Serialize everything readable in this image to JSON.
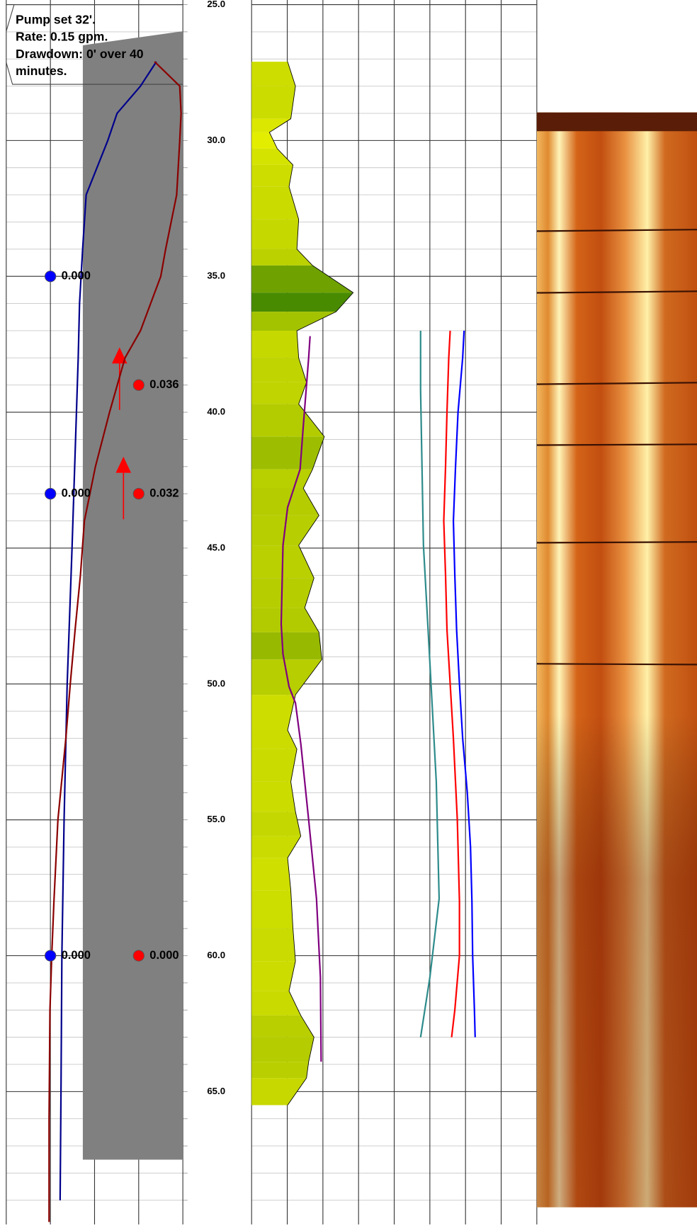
{
  "chart_data": {
    "type": "well_log",
    "ylim": [
      24.83,
      69.89
    ],
    "yticks": [
      {
        "value": 25,
        "label": "25.0"
      },
      {
        "value": 30,
        "label": "30.0"
      },
      {
        "value": 35,
        "label": "35.0"
      },
      {
        "value": 40,
        "label": "40.0"
      },
      {
        "value": 45,
        "label": "45.0"
      },
      {
        "value": 50,
        "label": "50.0"
      },
      {
        "value": 55,
        "label": "55.0"
      },
      {
        "value": 60,
        "label": "60.0"
      },
      {
        "value": 65,
        "label": "65.0"
      }
    ],
    "ygrid": [
      25,
      26,
      27,
      28,
      29,
      30,
      31,
      32,
      33,
      34,
      35,
      36,
      37,
      38,
      39,
      40,
      41,
      42,
      43,
      44,
      45,
      46,
      47,
      48,
      49,
      50,
      51,
      52,
      53,
      54,
      55,
      56,
      57,
      58,
      59,
      60,
      61,
      62,
      63,
      64,
      65,
      66,
      67,
      68,
      69
    ],
    "annotation": [
      "Pump set 32'.",
      "Rate: 0.15 gpm.",
      "Drawdown: 0' over 40",
      "minutes."
    ],
    "tracks": [
      {
        "xlim": [
          0,
          4
        ],
        "xticks": [
          0,
          1,
          2,
          3,
          4
        ],
        "curves": [
          {
            "color": "#00008b",
            "depths": [
              27.1,
              28,
              29,
              30,
              32,
              34,
              36,
              38,
              40,
              45,
              50,
              55,
              60,
              65,
              69
            ],
            "values": [
              3.4,
              3.04,
              2.51,
              2.3,
              1.81,
              1.73,
              1.66,
              1.63,
              1.59,
              1.49,
              1.38,
              1.31,
              1.26,
              1.24,
              1.22
            ]
          },
          {
            "color": "#8b0000",
            "depths": [
              27.1,
              28,
              29,
              30,
              32,
              34,
              35,
              37,
              38,
              40,
              42,
              44,
              46,
              48,
              50,
              52,
              55,
              58,
              60,
              62,
              66,
              69.8
            ],
            "values": [
              3.36,
              3.93,
              3.96,
              3.93,
              3.86,
              3.61,
              3.5,
              3.04,
              2.69,
              2.34,
              2.02,
              1.77,
              1.68,
              1.56,
              1.45,
              1.35,
              1.17,
              1.08,
              1.03,
              0.99,
              0.97,
              0.97
            ]
          }
        ],
        "points": [
          {
            "color": "#0000ff",
            "x": 1,
            "depths": [
              35,
              43,
              60
            ],
            "values": [
              0,
              0,
              0
            ],
            "value_labels": [
              "0.000",
              "0.000",
              "0.000"
            ]
          },
          {
            "color": "#ff0000",
            "x": 3,
            "depths": [
              39,
              43,
              60
            ],
            "values": [
              0.036,
              0.032,
              0
            ],
            "value_labels": [
              "0.036",
              "0.032",
              "0.000"
            ]
          }
        ]
      },
      {
        "xlim": [
          0,
          8
        ],
        "xticks": [
          0,
          1,
          2,
          3,
          4,
          5,
          6,
          7,
          8
        ],
        "fill": {
          "colors": [
            "#e8f000",
            "#b4cc00",
            "#2e7a00"
          ],
          "depths": [
            27.1,
            28,
            29.2,
            29.7,
            30.3,
            30.9,
            31.7,
            32.9,
            34.0,
            34.6,
            35.6,
            36.3,
            37.0,
            38.0,
            38.9,
            39.7,
            40.9,
            42.1,
            42.8,
            43.8,
            44.9,
            46.1,
            47.2,
            48.1,
            49.1,
            50.4,
            51.7,
            52.4,
            53.6,
            54.7,
            55.6,
            56.4,
            57.6,
            59.0,
            60.2,
            61.3,
            62.2,
            63.0,
            63.9,
            64.5,
            65.5
          ],
          "values": [
            1.01,
            1.23,
            1.1,
            0.5,
            0.72,
            1.16,
            1.05,
            1.32,
            1.27,
            1.71,
            2.85,
            2.37,
            1.27,
            1.32,
            1.54,
            1.32,
            2.04,
            1.71,
            1.45,
            1.89,
            1.32,
            1.75,
            1.49,
            1.89,
            1.97,
            1.23,
            1.01,
            1.27,
            1.1,
            1.23,
            1.38,
            1.01,
            1.1,
            1.16,
            1.23,
            1.05,
            1.38,
            1.75,
            1.6,
            1.54,
            1.01
          ]
        },
        "curves": [
          {
            "color": "#800080",
            "depths": [
              37.2,
              38.0,
              40.5,
              42.1,
              43.5,
              44.9,
              47.8,
              48.9,
              50.1,
              50.7,
              52.2,
              55.0,
              57.9,
              60.8,
              63.9
            ],
            "values": [
              1.64,
              1.6,
              1.45,
              1.36,
              1.01,
              0.88,
              0.83,
              0.88,
              1.05,
              1.23,
              1.38,
              1.6,
              1.82,
              1.93,
              1.95
            ]
          },
          {
            "color": "#2e8b8b",
            "depths": [
              37.0,
              39.2,
              44.9,
              49.2,
              53.6,
              57.9,
              60.8,
              63.0
            ],
            "values": [
              4.74,
              4.74,
              4.82,
              5.0,
              5.18,
              5.26,
              5.0,
              4.74
            ]
          },
          {
            "color": "#ff0000",
            "depths": [
              37,
              38,
              40,
              42,
              44,
              46,
              48,
              50,
              52,
              55,
              58,
              60,
              62,
              63
            ],
            "values": [
              5.57,
              5.53,
              5.48,
              5.44,
              5.39,
              5.44,
              5.48,
              5.57,
              5.66,
              5.77,
              5.83,
              5.83,
              5.7,
              5.61
            ]
          },
          {
            "color": "#0000ff",
            "depths": [
              37,
              38,
              40,
              42,
              44,
              46,
              48,
              50,
              52,
              54,
              56,
              58,
              60,
              62,
              63
            ],
            "values": [
              5.96,
              5.92,
              5.79,
              5.72,
              5.66,
              5.7,
              5.75,
              5.83,
              5.92,
              6.05,
              6.14,
              6.18,
              6.2,
              6.25,
              6.27
            ]
          }
        ]
      }
    ]
  }
}
